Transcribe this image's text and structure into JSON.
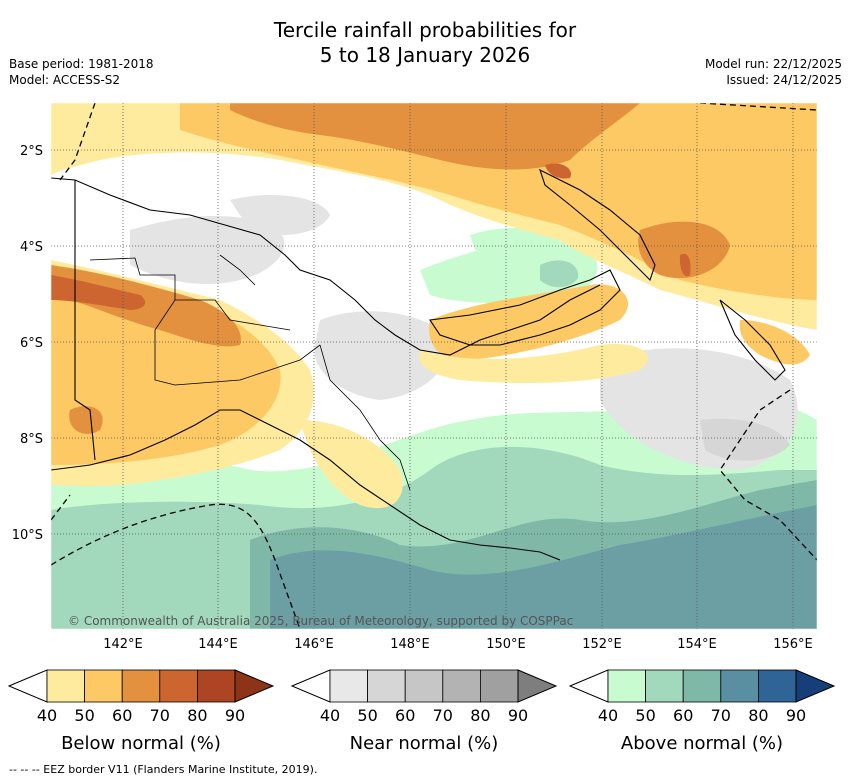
{
  "header": {
    "title_line1": "Tercile rainfall probabilities for",
    "title_line2": "5 to 18 January 2026",
    "base_period": "Base period: 1981-2018",
    "model": "Model: ACCESS-S2",
    "model_run": "Model run: 22/12/2025",
    "issued": "Issued: 24/12/2025"
  },
  "map": {
    "lat_labels": [
      "2°S",
      "4°S",
      "6°S",
      "8°S",
      "10°S"
    ],
    "lon_labels": [
      "142°E",
      "144°E",
      "146°E",
      "148°E",
      "150°E",
      "152°E",
      "154°E",
      "156°E"
    ],
    "copyright": "© Commonwealth of Australia 2025, Bureau of Meteorology, supported by COSPPac"
  },
  "legends": [
    {
      "label": "Below normal (%)",
      "ticks": [
        "40",
        "50",
        "60",
        "70",
        "80",
        "90"
      ],
      "colors": [
        "#ffffff",
        "#ffeb9e",
        "#fdc964",
        "#e3913f",
        "#cd6530",
        "#ad4524",
        "#8c3318"
      ]
    },
    {
      "label": "Near normal (%)",
      "ticks": [
        "40",
        "50",
        "60",
        "70",
        "80",
        "90"
      ],
      "colors": [
        "#ffffff",
        "#e8e8e8",
        "#d6d6d6",
        "#c6c6c6",
        "#b3b3b3",
        "#a0a0a0",
        "#7e7e7e"
      ]
    },
    {
      "label": "Above normal (%)",
      "ticks": [
        "40",
        "50",
        "60",
        "70",
        "80",
        "90"
      ],
      "colors": [
        "#ffffff",
        "#c9fbd0",
        "#a2d9bc",
        "#80b8a8",
        "#5a8fa2",
        "#2e6496",
        "#163f7a"
      ]
    }
  ],
  "footer": {
    "text": "-- -- -- EEZ border V11 (Flanders Marine Institute, 2019)."
  }
}
